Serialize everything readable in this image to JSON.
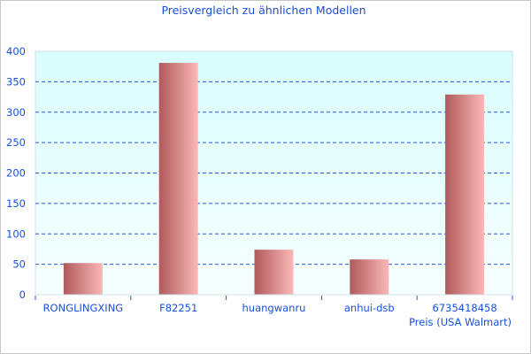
{
  "chart_data": {
    "type": "bar",
    "title": "Preisvergleich zu ähnlichen Modellen",
    "xlabel": "Preis (USA Walmart)",
    "ylabel": "",
    "categories": [
      "RONGLINGXING",
      "F82251",
      "huangwanru",
      "anhui-dsb",
      "6735418458"
    ],
    "values": [
      52,
      381,
      74,
      58,
      329
    ],
    "ylim": [
      0,
      400
    ],
    "yticks": [
      0,
      50,
      100,
      150,
      200,
      250,
      300,
      350,
      400
    ],
    "grid": "horizontal dashed",
    "legend": "none",
    "colors": {
      "bar_dark": "#b05a5a",
      "bar_light": "#fbb8b8",
      "text": "#1a4fd6",
      "grid": "#2b55d0",
      "plot_bg_top": "#d9fdfd",
      "plot_bg_bottom": "#f7ffff"
    }
  }
}
